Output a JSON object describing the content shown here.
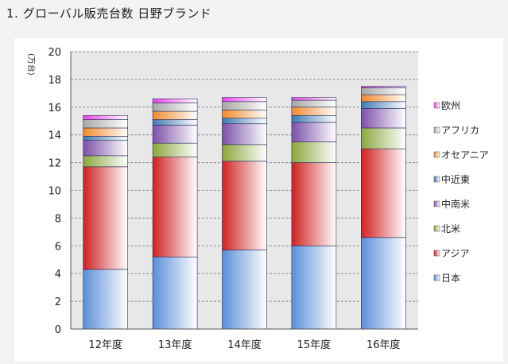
{
  "heading": "1. グローバル販売台数 日野ブランド",
  "chart_data": {
    "type": "bar",
    "stacked": true,
    "ylabel": "(万台)",
    "ylim": [
      0,
      20
    ],
    "ytick_step": 2,
    "grid": true,
    "legend_position": "right",
    "categories": [
      "12年度",
      "13年度",
      "14年度",
      "15年度",
      "16年度"
    ],
    "series": [
      {
        "name": "日本",
        "color": "#5b8ed8",
        "values": [
          4.3,
          5.2,
          5.7,
          6.0,
          6.6
        ]
      },
      {
        "name": "アジア",
        "color": "#d02020",
        "values": [
          7.4,
          7.2,
          6.4,
          6.0,
          6.4
        ]
      },
      {
        "name": "北米",
        "color": "#8aa63c",
        "values": [
          0.8,
          1.0,
          1.2,
          1.5,
          1.5
        ]
      },
      {
        "name": "中南米",
        "color": "#7b50a8",
        "values": [
          1.1,
          1.3,
          1.5,
          1.4,
          1.4
        ]
      },
      {
        "name": "中近東",
        "color": "#3f7ab0",
        "values": [
          0.3,
          0.4,
          0.4,
          0.5,
          0.5
        ]
      },
      {
        "name": "オセアニア",
        "color": "#f08a2c",
        "values": [
          0.6,
          0.6,
          0.6,
          0.6,
          0.5
        ]
      },
      {
        "name": "アフリカ",
        "color": "#a8a8a8",
        "values": [
          0.6,
          0.6,
          0.6,
          0.5,
          0.5
        ]
      },
      {
        "name": "欧州",
        "color": "#e845e8",
        "values": [
          0.3,
          0.3,
          0.3,
          0.2,
          0.1
        ]
      }
    ]
  }
}
